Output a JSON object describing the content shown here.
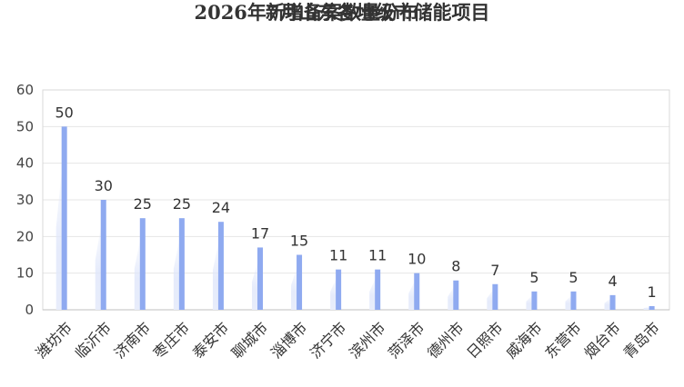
{
  "title_line1": "2026年7月山东各地级市储能项目",
  "title_line2": "新增备案数量分布",
  "chart_data": {
    "type": "bar",
    "title": "2026年7月山东各地级市储能项目 新增备案数量分布",
    "xlabel": "",
    "ylabel": "",
    "ylim": [
      0,
      60
    ],
    "yticks": [
      0,
      10,
      20,
      30,
      40,
      50,
      60
    ],
    "grid": true,
    "legend": "none",
    "bar_color": "#8faaf0",
    "categories": [
      "潍坊市",
      "临沂市",
      "济南市",
      "枣庄市",
      "泰安市",
      "聊城市",
      "淄博市",
      "济宁市",
      "滨州市",
      "菏泽市",
      "德州市",
      "日照市",
      "威海市",
      "东营市",
      "烟台市",
      "青岛市"
    ],
    "values": [
      50,
      30,
      25,
      25,
      24,
      17,
      15,
      11,
      11,
      10,
      8,
      7,
      5,
      5,
      4,
      1
    ]
  }
}
